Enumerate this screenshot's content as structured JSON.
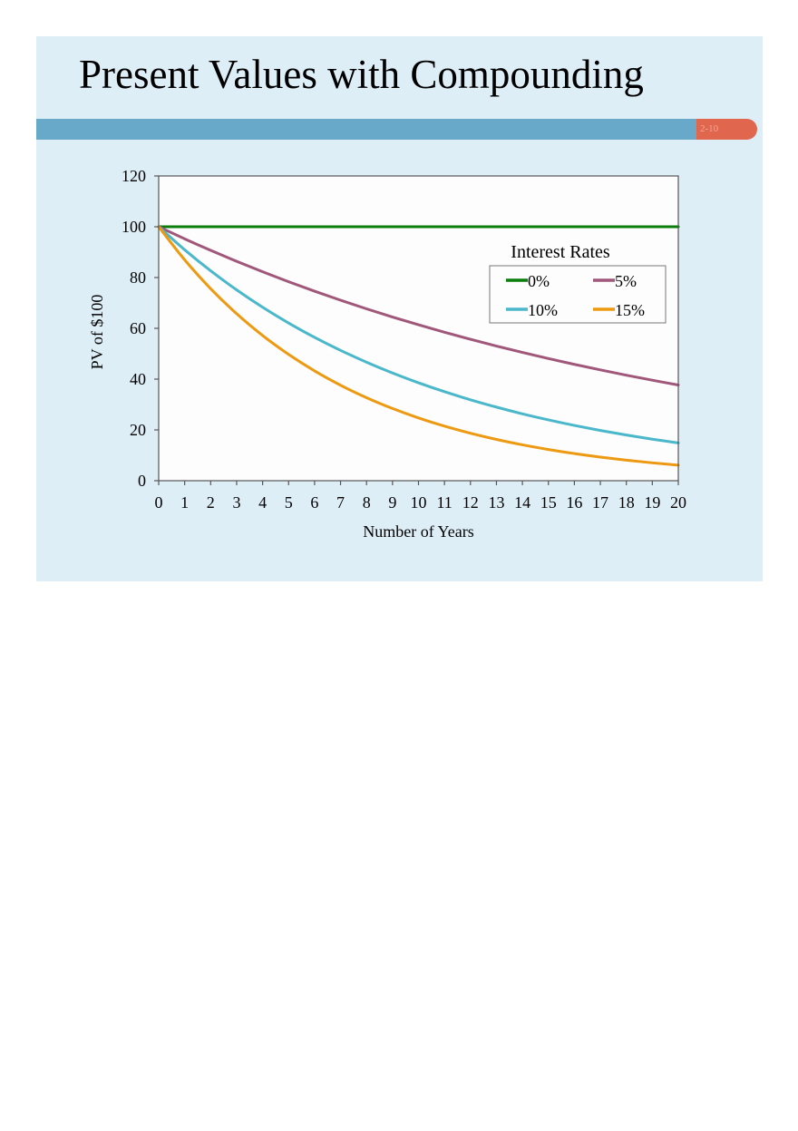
{
  "slide": {
    "title": "Present Values with Compounding",
    "page_number": "2-10",
    "colors": {
      "background": "#deeef7",
      "title_bar": "#68a8c8",
      "page_tag": "#e0664e",
      "page_tag_text": "#f2a898",
      "plot_background": "#fdfdfd"
    }
  },
  "chart_data": {
    "type": "line",
    "title": "",
    "xlabel": "Number of Years",
    "ylabel": "PV of $100",
    "x": [
      0,
      1,
      2,
      3,
      4,
      5,
      6,
      7,
      8,
      9,
      10,
      11,
      12,
      13,
      14,
      15,
      16,
      17,
      18,
      19,
      20
    ],
    "x_tick_labels": [
      "0",
      "1",
      "2",
      "3",
      "4",
      "5",
      "6",
      "7",
      "8",
      "9",
      "10",
      "11",
      "12",
      "13",
      "14",
      "15",
      "16",
      "17",
      "18",
      "19",
      "20"
    ],
    "y_tick_labels": [
      "0",
      "20",
      "40",
      "60",
      "80",
      "100",
      "120"
    ],
    "xlim": [
      0,
      20
    ],
    "ylim": [
      0,
      120
    ],
    "grid": false,
    "legend": {
      "title": "Interest Rates",
      "placement": "top-right"
    },
    "series": [
      {
        "name": "0%",
        "color": "#0a7d0a",
        "values": [
          100,
          100,
          100,
          100,
          100,
          100,
          100,
          100,
          100,
          100,
          100,
          100,
          100,
          100,
          100,
          100,
          100,
          100,
          100,
          100,
          100
        ]
      },
      {
        "name": "5%",
        "color": "#a0577a",
        "values": [
          100,
          95.24,
          90.7,
          86.38,
          82.27,
          78.35,
          74.62,
          71.07,
          67.68,
          64.46,
          61.39,
          58.47,
          55.68,
          53.03,
          50.51,
          48.1,
          45.81,
          43.63,
          41.55,
          39.57,
          37.69
        ]
      },
      {
        "name": "10%",
        "color": "#4ab7cb",
        "values": [
          100,
          90.91,
          82.64,
          75.13,
          68.3,
          62.09,
          56.45,
          51.32,
          46.65,
          42.41,
          38.55,
          35.05,
          31.86,
          28.97,
          26.33,
          23.94,
          21.76,
          19.78,
          17.99,
          16.35,
          14.86
        ]
      },
      {
        "name": "15%",
        "color": "#ed9a12",
        "values": [
          100,
          86.96,
          75.61,
          65.75,
          57.18,
          49.72,
          43.23,
          37.59,
          32.69,
          28.43,
          24.72,
          21.49,
          18.69,
          16.25,
          14.13,
          12.29,
          10.69,
          9.29,
          8.08,
          7.03,
          6.11
        ]
      }
    ]
  }
}
